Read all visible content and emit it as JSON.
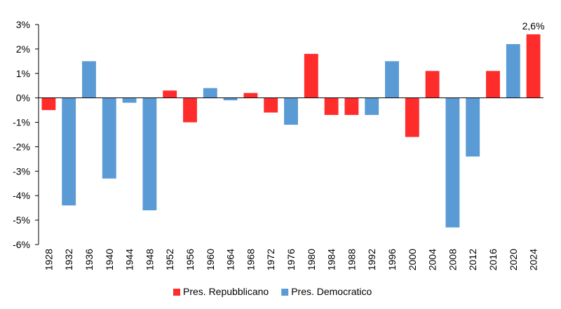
{
  "chart_data": {
    "type": "bar",
    "categories": [
      "1928",
      "1932",
      "1936",
      "1940",
      "1944",
      "1948",
      "1952",
      "1956",
      "1960",
      "1964",
      "1968",
      "1972",
      "1976",
      "1980",
      "1984",
      "1988",
      "1992",
      "1996",
      "2000",
      "2004",
      "2008",
      "2012",
      "2016",
      "2020",
      "2024"
    ],
    "values": [
      -0.5,
      -4.4,
      1.5,
      -3.3,
      -0.2,
      -4.6,
      0.3,
      -1.0,
      0.4,
      -0.1,
      0.2,
      -0.6,
      -1.1,
      1.8,
      -0.7,
      -0.7,
      -0.7,
      1.5,
      -1.6,
      1.1,
      -5.3,
      -2.4,
      1.1,
      2.2,
      2.6
    ],
    "party": [
      "R",
      "D",
      "D",
      "D",
      "D",
      "D",
      "R",
      "R",
      "D",
      "D",
      "R",
      "R",
      "D",
      "R",
      "R",
      "R",
      "D",
      "D",
      "R",
      "R",
      "D",
      "D",
      "R",
      "D",
      "R"
    ],
    "ylim": [
      -6,
      3
    ],
    "yticks": [
      -6,
      -5,
      -4,
      -3,
      -2,
      -1,
      0,
      1,
      2,
      3
    ],
    "ytick_labels": [
      "-6%",
      "-5%",
      "-4%",
      "-3%",
      "-2%",
      "-1%",
      "0%",
      "1%",
      "2%",
      "3%"
    ],
    "annotations": [
      {
        "category": "2024",
        "text": "2,6%"
      }
    ],
    "legend": [
      {
        "key": "R",
        "label": "Pres. Repubblicano",
        "color": "#ff2c2c"
      },
      {
        "key": "D",
        "label": "Pres. Democratico",
        "color": "#5b9bd5"
      }
    ],
    "legend_position": "bottom",
    "grid": false
  }
}
